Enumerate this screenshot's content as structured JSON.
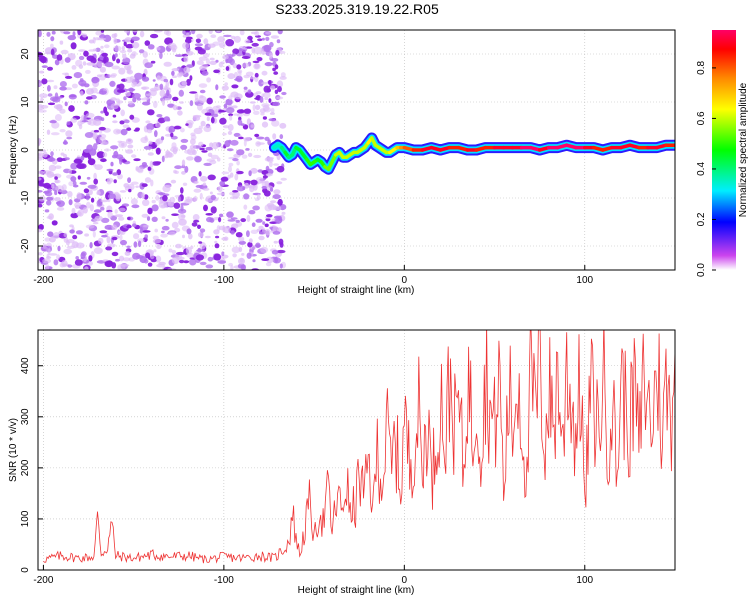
{
  "title": "S233.2025.319.19.22.R05",
  "chart_data": [
    {
      "type": "heatmap",
      "title": "S233.2025.319.19.22.R05",
      "xlabel": "Height of straight line (km)",
      "ylabel": "Frequency (Hz)",
      "xlim": [
        -203,
        150
      ],
      "ylim": [
        -25,
        25
      ],
      "xticks": [
        -200,
        -100,
        0,
        100
      ],
      "yticks": [
        -20,
        -10,
        0,
        10,
        20
      ],
      "grid": true,
      "noise_region_x": [
        -203,
        -70
      ],
      "signal_trace": {
        "x": [
          -72,
          -70,
          -68,
          -66,
          -64,
          -62,
          -60,
          -58,
          -56,
          -54,
          -52,
          -50,
          -48,
          -46,
          -44,
          -42,
          -40,
          -38,
          -36,
          -34,
          -32,
          -30,
          -28,
          -26,
          -24,
          -22,
          -20,
          -18,
          -16,
          -14,
          -12,
          -10,
          -8,
          -6,
          -4,
          -2,
          0,
          5,
          10,
          15,
          20,
          25,
          30,
          35,
          40,
          45,
          50,
          55,
          60,
          65,
          70,
          75,
          80,
          85,
          90,
          95,
          100,
          105,
          110,
          115,
          120,
          125,
          130,
          135,
          140,
          145,
          150
        ],
        "freq": [
          0.5,
          1.0,
          0.5,
          -0.5,
          -1.5,
          -1.0,
          0.5,
          0.0,
          -1.0,
          -2.0,
          -3.0,
          -2.5,
          -2.0,
          -2.5,
          -3.5,
          -4.0,
          -2.5,
          -1.0,
          -0.5,
          -1.5,
          -1.5,
          -1.0,
          -0.5,
          -0.5,
          0.0,
          0.5,
          1.5,
          2.5,
          1.0,
          0.5,
          0.0,
          -0.5,
          -0.5,
          0.0,
          0.5,
          0.5,
          0.5,
          0.0,
          0.0,
          0.5,
          0.0,
          0.5,
          0.5,
          0.0,
          0.0,
          0.5,
          0.5,
          0.5,
          0.5,
          0.5,
          0.5,
          0.0,
          0.5,
          0.5,
          1.0,
          0.5,
          0.5,
          0.5,
          0.0,
          0.5,
          0.5,
          1.0,
          0.5,
          0.5,
          0.5,
          1.0,
          1.0
        ],
        "amplitude": [
          0.35,
          0.35,
          0.4,
          0.45,
          0.4,
          0.4,
          0.45,
          0.45,
          0.45,
          0.5,
          0.5,
          0.5,
          0.45,
          0.5,
          0.55,
          0.55,
          0.55,
          0.6,
          0.6,
          0.6,
          0.6,
          0.6,
          0.6,
          0.6,
          0.6,
          0.6,
          0.65,
          0.6,
          0.6,
          0.6,
          0.6,
          0.6,
          0.65,
          0.65,
          0.7,
          0.75,
          0.8,
          0.85,
          0.9,
          0.9,
          0.9,
          0.85,
          0.85,
          0.9,
          0.85,
          0.85,
          0.9,
          0.9,
          0.9,
          0.95,
          0.95,
          0.9,
          0.95,
          0.95,
          0.95,
          0.95,
          0.9,
          0.85,
          0.85,
          0.9,
          0.9,
          0.9,
          0.85,
          0.9,
          0.9,
          0.85,
          0.85
        ]
      },
      "colorbar": {
        "label": "Normalized spectral amplitude",
        "range": [
          0.0,
          0.95
        ],
        "ticks": [
          0.0,
          0.2,
          0.4,
          0.6,
          0.8
        ],
        "tick_labels": [
          "0.0",
          "0.2",
          "0.4",
          "0.6",
          "0.8"
        ],
        "colors": [
          "#ffffff",
          "#cc44ee",
          "#0000ff",
          "#00eeff",
          "#00ff00",
          "#ffff00",
          "#ff8800",
          "#ff0000",
          "#ff0066"
        ]
      }
    },
    {
      "type": "line",
      "title": "",
      "xlabel": "Height of straight line (km)",
      "ylabel": "SNR (10 * v/v)",
      "xlim": [
        -203,
        150
      ],
      "ylim": [
        0,
        470
      ],
      "xticks": [
        -200,
        -100,
        0,
        100
      ],
      "yticks": [
        0,
        100,
        200,
        300,
        400
      ],
      "grid": true,
      "color": "#ee3333",
      "series": [
        {
          "name": "SNR",
          "x": [
            -200,
            -190,
            -180,
            -172,
            -170,
            -168,
            -165,
            -162,
            -160,
            -150,
            -140,
            -130,
            -120,
            -110,
            -100,
            -90,
            -80,
            -72,
            -68,
            -64,
            -62,
            -60,
            -58,
            -55,
            -52,
            -50,
            -47,
            -45,
            -42,
            -40,
            -37,
            -35,
            -32,
            -30,
            -27,
            -25,
            -22,
            -20,
            -17,
            -15,
            -12,
            -10,
            -7,
            -5,
            -2,
            0,
            3,
            5,
            8,
            10,
            13,
            15,
            18,
            20,
            23,
            25,
            28,
            30,
            33,
            35,
            38,
            40,
            43,
            45,
            48,
            50,
            53,
            55,
            58,
            60,
            63,
            65,
            68,
            70,
            73,
            75,
            78,
            80,
            83,
            85,
            88,
            90,
            93,
            95,
            98,
            100,
            103,
            105,
            108,
            110,
            113,
            115,
            118,
            120,
            123,
            125,
            128,
            130,
            133,
            135,
            138,
            140,
            143,
            145,
            148,
            150
          ],
          "y": [
            22,
            30,
            25,
            28,
            105,
            35,
            45,
            95,
            30,
            25,
            32,
            28,
            30,
            22,
            28,
            25,
            30,
            25,
            40,
            60,
            120,
            70,
            30,
            90,
            150,
            60,
            130,
            100,
            170,
            80,
            160,
            120,
            190,
            110,
            140,
            200,
            150,
            230,
            130,
            260,
            180,
            300,
            210,
            280,
            170,
            320,
            220,
            260,
            330,
            200,
            350,
            180,
            290,
            380,
            250,
            410,
            300,
            360,
            200,
            420,
            280,
            390,
            240,
            430,
            320,
            300,
            410,
            150,
            380,
            290,
            420,
            320,
            180,
            400,
            330,
            440,
            260,
            380,
            310,
            420,
            250,
            460,
            330,
            290,
            410,
            120,
            380,
            340,
            300,
            420,
            270,
            370,
            200,
            410,
            330,
            300,
            390,
            250,
            420,
            340,
            310,
            450,
            280,
            380,
            330,
            430
          ]
        }
      ]
    }
  ]
}
